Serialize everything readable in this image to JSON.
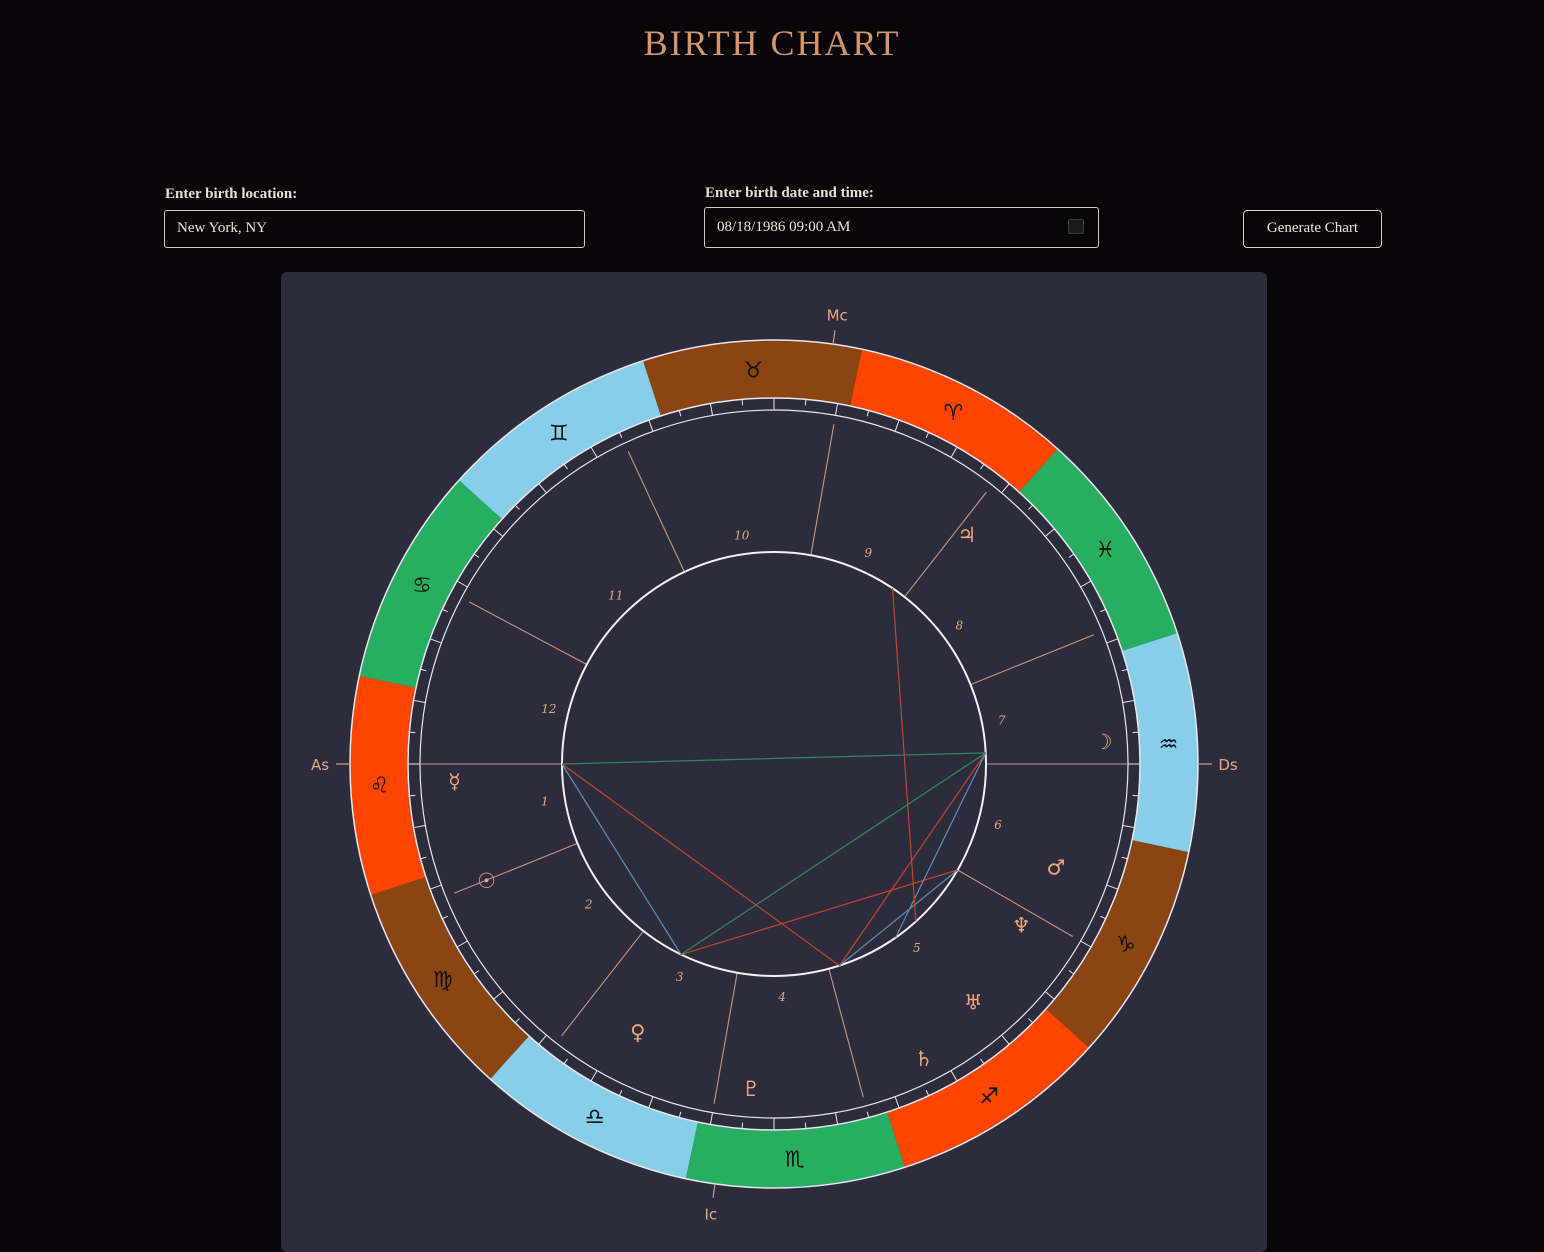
{
  "page": {
    "title": "BIRTH CHART"
  },
  "form": {
    "location_label": "Enter birth location:",
    "location_value": "New York, NY",
    "datetime_label": "Enter birth date and time:",
    "datetime_value": "08/18/1986 09:00 AM",
    "generate_label": "Generate Chart",
    "calendar_icon": "calendar-icon"
  },
  "colors": {
    "title": "#d4956a",
    "panel_bg": "#2d2c3c",
    "earth": "#8b4513",
    "fire": "#ff4500",
    "water": "#27ae60",
    "air": "#87ceeb",
    "line": "#c8957a",
    "symbol": "#e8a77c"
  },
  "chart": {
    "axes": {
      "asc": "As",
      "mc": "Mc",
      "dsc": "Ds",
      "ic": "Ic"
    },
    "signs": [
      {
        "name": "Leo",
        "glyph": "♌",
        "element": "fire"
      },
      {
        "name": "Virgo",
        "glyph": "♍",
        "element": "earth"
      },
      {
        "name": "Libra",
        "glyph": "♎",
        "element": "air"
      },
      {
        "name": "Scorpio",
        "glyph": "♏",
        "element": "water"
      },
      {
        "name": "Sagittarius",
        "glyph": "♐",
        "element": "fire"
      },
      {
        "name": "Capricorn",
        "glyph": "♑",
        "element": "earth"
      },
      {
        "name": "Aquarius",
        "glyph": "♒",
        "element": "air"
      },
      {
        "name": "Pisces",
        "glyph": "♓",
        "element": "water"
      },
      {
        "name": "Aries",
        "glyph": "♈",
        "element": "fire"
      },
      {
        "name": "Taurus",
        "glyph": "♉",
        "element": "earth"
      },
      {
        "name": "Gemini",
        "glyph": "♊",
        "element": "air"
      },
      {
        "name": "Cancer",
        "glyph": "♋",
        "element": "water"
      }
    ],
    "houses": [
      "1",
      "2",
      "3",
      "4",
      "5",
      "6",
      "7",
      "8",
      "9",
      "10",
      "11",
      "12"
    ],
    "planets": [
      {
        "name": "Mercury",
        "glyph": "☿"
      },
      {
        "name": "Sun",
        "glyph": "☉"
      },
      {
        "name": "Venus",
        "glyph": "♀"
      },
      {
        "name": "Pluto",
        "glyph": "♇"
      },
      {
        "name": "Saturn",
        "glyph": "♄"
      },
      {
        "name": "Uranus",
        "glyph": "♅"
      },
      {
        "name": "Neptune",
        "glyph": "♆"
      },
      {
        "name": "Mars",
        "glyph": "♂"
      },
      {
        "name": "Moon",
        "glyph": "☽"
      },
      {
        "name": "Jupiter",
        "glyph": "♃"
      }
    ],
    "aspect_colors": {
      "red": "#c0462a",
      "green": "#2e8b57",
      "blue": "#5a8fb8"
    }
  }
}
